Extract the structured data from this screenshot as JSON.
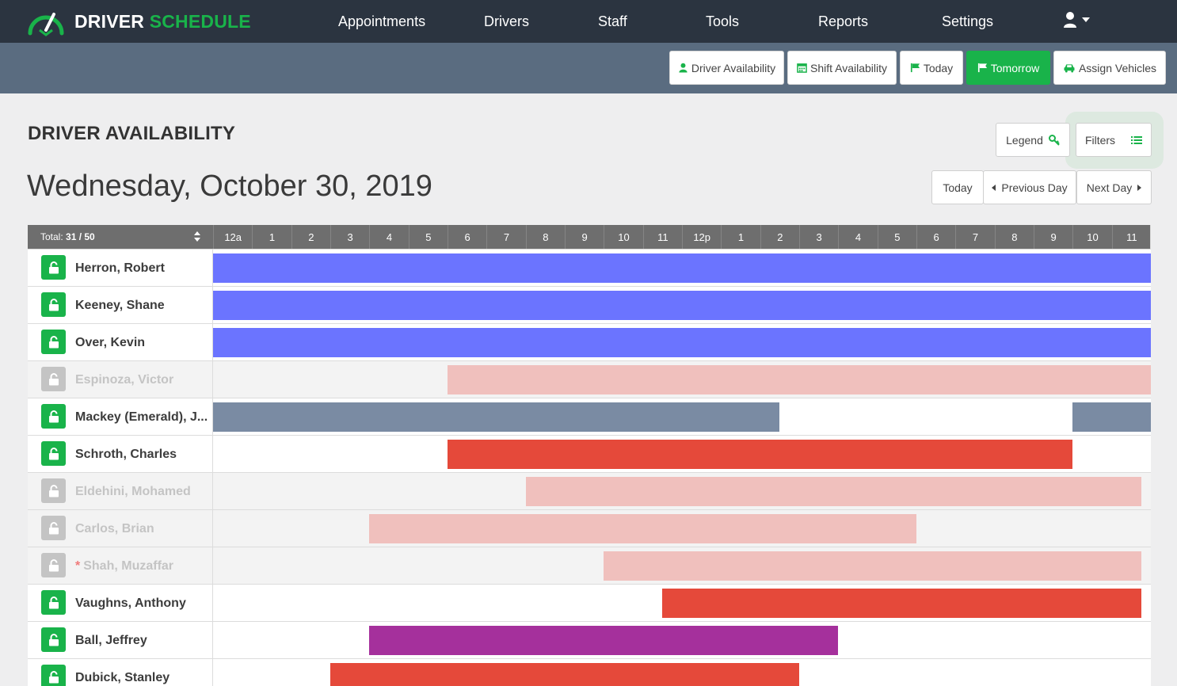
{
  "brand": {
    "word1": "DRIVER",
    "word2": "SCHEDULE"
  },
  "colors": {
    "nav_bg": "#2b3440",
    "subbar_bg": "#5a6c80",
    "brand_green": "#19b34a",
    "blue": "#6b74ff",
    "slate": "#7a8ba3",
    "red": "#e5493a",
    "pink": "#f0c0bd",
    "purple": "#a5309c"
  },
  "nav": {
    "items": [
      {
        "label": "Appointments"
      },
      {
        "label": "Drivers"
      },
      {
        "label": "Staff"
      },
      {
        "label": "Tools"
      },
      {
        "label": "Reports"
      },
      {
        "label": "Settings"
      }
    ],
    "user_icon": "user-icon"
  },
  "toolbar": {
    "buttons": [
      {
        "label": "Driver Availability",
        "icon": "user-icon",
        "active": false
      },
      {
        "label": "Shift Availability",
        "icon": "calendar-icon",
        "active": false
      },
      {
        "label": "Today",
        "icon": "flag-icon",
        "active": false
      },
      {
        "label": "Tomorrow",
        "icon": "flag-icon",
        "active": true
      },
      {
        "label": "Assign Vehicles",
        "icon": "car-icon",
        "active": false
      }
    ]
  },
  "page": {
    "title": "DRIVER AVAILABILITY",
    "date": "Wednesday, October 30, 2019",
    "legend_label": "Legend",
    "filters_label": "Filters",
    "today_label": "Today",
    "prev_label": "Previous Day",
    "next_label": "Next Day"
  },
  "grid": {
    "total_prefix": "Total:",
    "total_value": "31 / 50",
    "hours": [
      "12a",
      "1",
      "2",
      "3",
      "4",
      "5",
      "6",
      "7",
      "8",
      "9",
      "10",
      "11",
      "12p",
      "1",
      "2",
      "3",
      "4",
      "5",
      "6",
      "7",
      "8",
      "9",
      "10",
      "11"
    ],
    "rows": [
      {
        "name": "Herron, Robert",
        "status": "active",
        "star": false,
        "bars": [
          {
            "start": 0,
            "end": 24,
            "color": "blue"
          }
        ]
      },
      {
        "name": "Keeney, Shane",
        "status": "active",
        "star": false,
        "bars": [
          {
            "start": 0,
            "end": 24,
            "color": "blue"
          }
        ]
      },
      {
        "name": "Over, Kevin",
        "status": "active",
        "star": false,
        "bars": [
          {
            "start": 0,
            "end": 24,
            "color": "blue"
          }
        ]
      },
      {
        "name": "Espinoza, Victor",
        "status": "inactive",
        "star": false,
        "bars": [
          {
            "start": 6,
            "end": 24,
            "color": "pink"
          }
        ]
      },
      {
        "name": "Mackey (Emerald), J...",
        "status": "active",
        "star": false,
        "bars": [
          {
            "start": 0,
            "end": 14.5,
            "color": "slate"
          },
          {
            "start": 22,
            "end": 24,
            "color": "slate"
          }
        ]
      },
      {
        "name": "Schroth, Charles",
        "status": "active",
        "star": false,
        "bars": [
          {
            "start": 6,
            "end": 22,
            "color": "red"
          }
        ]
      },
      {
        "name": "Eldehini, Mohamed",
        "status": "inactive",
        "star": false,
        "bars": [
          {
            "start": 8,
            "end": 23.75,
            "color": "pink"
          }
        ]
      },
      {
        "name": "Carlos, Brian",
        "status": "inactive",
        "star": false,
        "bars": [
          {
            "start": 4,
            "end": 18,
            "color": "pink"
          }
        ]
      },
      {
        "name": "Shah, Muzaffar",
        "status": "inactive",
        "star": true,
        "bars": [
          {
            "start": 10,
            "end": 23.75,
            "color": "pink"
          }
        ]
      },
      {
        "name": "Vaughns, Anthony",
        "status": "active",
        "star": false,
        "bars": [
          {
            "start": 11.5,
            "end": 23.75,
            "color": "red"
          }
        ]
      },
      {
        "name": "Ball, Jeffrey",
        "status": "active",
        "star": false,
        "bars": [
          {
            "start": 4,
            "end": 16,
            "color": "purple"
          }
        ]
      },
      {
        "name": "Dubick, Stanley",
        "status": "active",
        "star": false,
        "bars": [
          {
            "start": 3,
            "end": 15,
            "color": "red"
          }
        ]
      }
    ]
  }
}
